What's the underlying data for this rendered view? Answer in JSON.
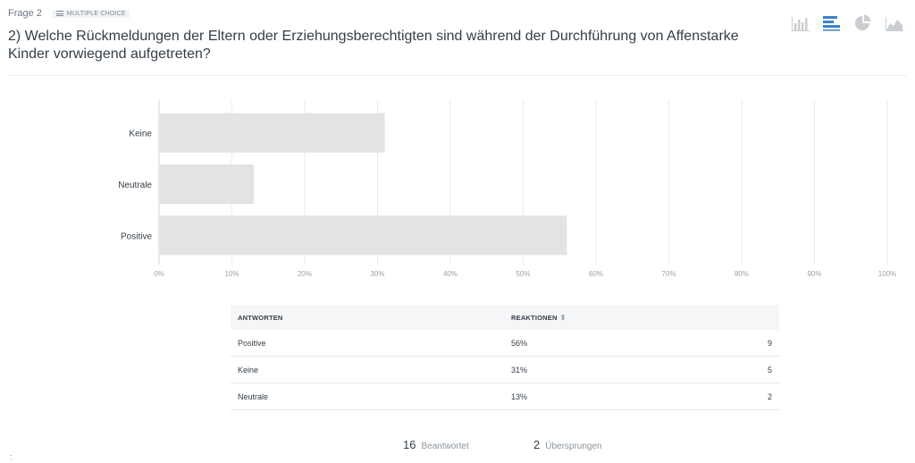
{
  "question": {
    "number_label": "Frage 2",
    "type_label": "MULTIPLE CHOICE",
    "title": "2) Welche Rückmeldungen der Eltern oder Erziehungsberechtigten sind während der Durchführung von Affenstarke Kinder vorwiegend aufgetreten?"
  },
  "view_switcher": [
    "vertical-bar-icon",
    "horizontal-bar-icon",
    "pie-chart-icon",
    "area-chart-icon"
  ],
  "chart_data": {
    "type": "bar",
    "orientation": "horizontal",
    "categories": [
      "Keine",
      "Neutrale",
      "Positive"
    ],
    "values": [
      31,
      13,
      56
    ],
    "xlim": [
      0,
      100
    ],
    "xticks": [
      "0%",
      "10%",
      "20%",
      "30%",
      "40%",
      "50%",
      "60%",
      "70%",
      "80%",
      "90%",
      "100%"
    ],
    "grid": true,
    "bar_color": "#e3e3e3"
  },
  "table": {
    "col_answers": "ANTWORTEN",
    "col_reactions": "REAKTIONEN",
    "sort_symbol": "⇕",
    "rows": [
      {
        "answer": "Positive",
        "percent": "56%",
        "count": "9"
      },
      {
        "answer": "Keine",
        "percent": "31%",
        "count": "5"
      },
      {
        "answer": "Neutrale",
        "percent": "13%",
        "count": "2"
      }
    ]
  },
  "summary": {
    "answered_count": "16",
    "answered_label": "Beantwortet",
    "skipped_count": "2",
    "skipped_label": "Übersprungen"
  },
  "stray_mark": ":",
  "colors": {
    "accent": "#3b83c4",
    "icon_inactive": "#c9ced3"
  }
}
